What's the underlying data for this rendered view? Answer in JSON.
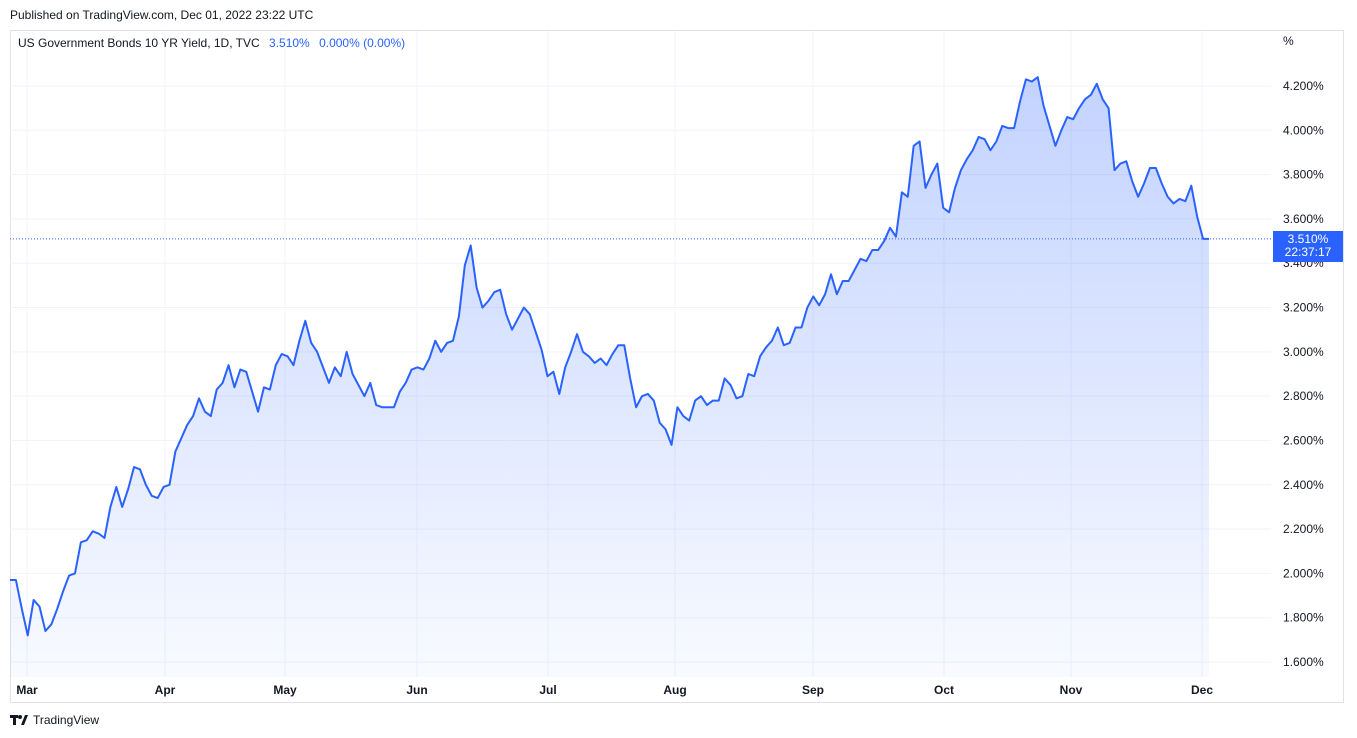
{
  "header": {
    "published": "Published on TradingView.com, Dec 01, 2022 23:22 UTC"
  },
  "legend": {
    "symbol": "US Government Bonds 10 YR Yield, 1D, TVC",
    "last": "3.510%",
    "change": "0.000% (0.00%)"
  },
  "price_axis": {
    "unit": "%"
  },
  "price_label": {
    "value": "3.510%",
    "countdown": "22:37:17"
  },
  "footer": {
    "brand": "TradingView"
  },
  "colors": {
    "line": "#2962ff",
    "fill": "#2962ff",
    "grid": "#f0f3fa",
    "text": "#131722"
  },
  "icons": {
    "logo": "tradingview-logo-icon"
  },
  "chart_data": {
    "type": "area",
    "ylim": [
      1.55,
      4.45
    ],
    "y_ticks": [
      "1.600%",
      "1.800%",
      "2.000%",
      "2.200%",
      "2.400%",
      "2.600%",
      "2.800%",
      "3.000%",
      "3.200%",
      "3.400%",
      "3.600%",
      "3.800%",
      "4.000%",
      "4.200%"
    ],
    "months": [
      "Mar",
      "Apr",
      "May",
      "Jun",
      "Jul",
      "Aug",
      "Sep",
      "Oct",
      "Nov",
      "Dec"
    ],
    "last_value": 3.51,
    "series": [
      {
        "values": [
          1.97,
          1.97,
          1.84,
          1.72,
          1.88,
          1.85,
          1.74,
          1.77,
          1.84,
          1.92,
          1.99,
          2.0,
          2.14,
          2.15,
          2.19,
          2.18,
          2.16,
          2.3,
          2.39,
          2.3,
          2.38,
          2.48,
          2.47,
          2.4,
          2.35,
          2.34,
          2.39,
          2.4,
          2.55,
          2.61,
          2.67,
          2.71,
          2.79,
          2.73,
          2.71,
          2.83,
          2.86,
          2.94,
          2.84,
          2.92,
          2.91,
          2.82,
          2.73,
          2.84,
          2.83,
          2.94,
          2.99,
          2.98,
          2.94,
          3.05,
          3.14,
          3.04,
          3.0,
          2.93,
          2.86,
          2.93,
          2.89,
          3.0,
          2.9,
          2.85,
          2.8,
          2.86,
          2.76,
          2.75,
          2.75,
          2.75,
          2.82,
          2.86,
          2.92,
          2.93,
          2.92,
          2.97,
          3.05,
          3.0,
          3.04,
          3.05,
          3.16,
          3.39,
          3.48,
          3.29,
          3.2,
          3.23,
          3.27,
          3.28,
          3.17,
          3.1,
          3.15,
          3.2,
          3.17,
          3.09,
          3.01,
          2.89,
          2.91,
          2.81,
          2.93,
          3.0,
          3.08,
          3.0,
          2.98,
          2.95,
          2.97,
          2.94,
          2.99,
          3.03,
          3.03,
          2.88,
          2.75,
          2.8,
          2.81,
          2.78,
          2.68,
          2.65,
          2.58,
          2.75,
          2.71,
          2.69,
          2.78,
          2.8,
          2.76,
          2.78,
          2.78,
          2.88,
          2.85,
          2.79,
          2.8,
          2.9,
          2.89,
          2.98,
          3.02,
          3.05,
          3.11,
          3.03,
          3.04,
          3.11,
          3.11,
          3.2,
          3.25,
          3.21,
          3.26,
          3.35,
          3.26,
          3.32,
          3.32,
          3.37,
          3.42,
          3.41,
          3.46,
          3.46,
          3.5,
          3.56,
          3.52,
          3.72,
          3.7,
          3.93,
          3.95,
          3.74,
          3.8,
          3.85,
          3.65,
          3.63,
          3.74,
          3.82,
          3.87,
          3.91,
          3.97,
          3.96,
          3.91,
          3.95,
          4.02,
          4.01,
          4.01,
          4.13,
          4.23,
          4.22,
          4.24,
          4.11,
          4.02,
          3.93,
          4.0,
          4.06,
          4.05,
          4.1,
          4.14,
          4.16,
          4.21,
          4.14,
          4.1,
          3.82,
          3.85,
          3.86,
          3.77,
          3.7,
          3.76,
          3.83,
          3.83,
          3.76,
          3.7,
          3.67,
          3.69,
          3.68,
          3.75,
          3.61,
          3.51,
          3.51
        ]
      }
    ]
  }
}
